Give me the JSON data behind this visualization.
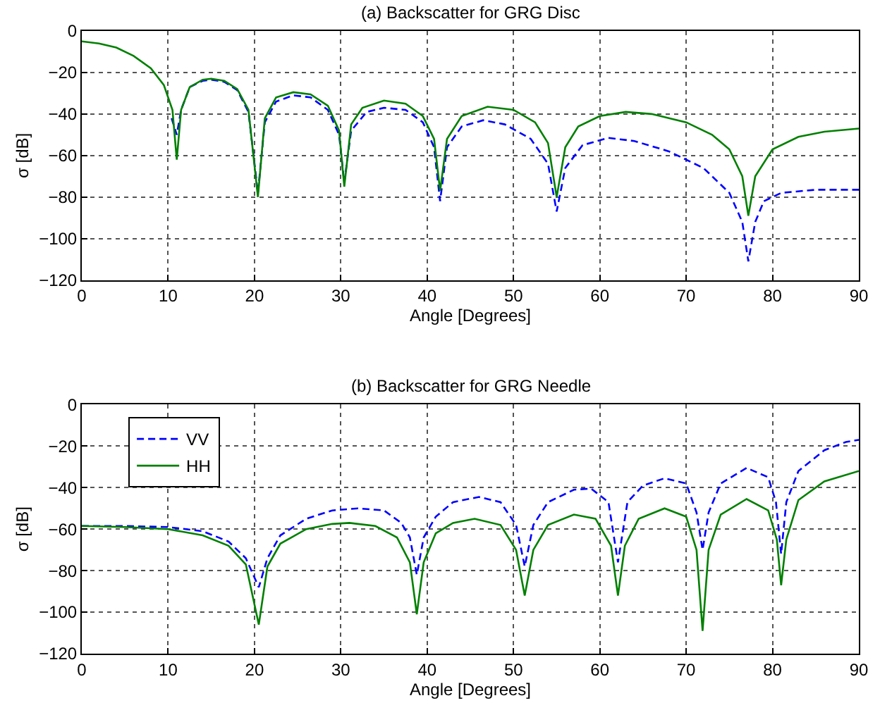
{
  "chart_data": [
    {
      "type": "line",
      "title": "(a) Backscatter for GRG Disc",
      "xlabel": "Angle [Degrees]",
      "ylabel": "σ [dB]",
      "xlim": [
        0,
        90
      ],
      "ylim": [
        -120,
        0
      ],
      "xticks": [
        0,
        10,
        20,
        30,
        40,
        50,
        60,
        70,
        80,
        90
      ],
      "yticks": [
        -120,
        -100,
        -80,
        -60,
        -40,
        -20,
        0
      ],
      "grid": true,
      "marker": "none",
      "series": [
        {
          "color": "#0000ff",
          "line_style": "dashed",
          "x": [
            10.4,
            11,
            11.5,
            12.5,
            14,
            15,
            16.5,
            18,
            19.3,
            20.4,
            21.2,
            22.5,
            24.5,
            26.5,
            28.5,
            29.8,
            30.4,
            31.2,
            33,
            35,
            37.5,
            39.5,
            40.8,
            41.5,
            42.3,
            44,
            46.5,
            49,
            52,
            54,
            55,
            56,
            58,
            61,
            64,
            68,
            72,
            75,
            76.5,
            77.2,
            78,
            79,
            81,
            85,
            90
          ],
          "values": [
            -42,
            -50,
            -38,
            -27,
            -24,
            -23.5,
            -24.5,
            -28.5,
            -39,
            -78,
            -44,
            -34,
            -31,
            -32,
            -38,
            -50,
            -73,
            -48,
            -39,
            -37,
            -38,
            -44,
            -56,
            -82,
            -56,
            -46,
            -43,
            -45,
            -52,
            -64,
            -87,
            -66,
            -55,
            -51.5,
            -53,
            -58,
            -66,
            -78,
            -92,
            -111,
            -92,
            -82,
            -78,
            -76.5,
            -76.5
          ]
        },
        {
          "color": "#008000",
          "line_style": "solid",
          "x": [
            0,
            2,
            4,
            6,
            8,
            9.5,
            10.5,
            11,
            11.5,
            12.5,
            14,
            15,
            16.5,
            18,
            19.3,
            20.4,
            21.2,
            22.5,
            24.5,
            26.5,
            28.5,
            29.8,
            30.4,
            31.2,
            32.5,
            35,
            37.5,
            39.5,
            40.8,
            41.5,
            42.3,
            44,
            47,
            50,
            52.5,
            54,
            55,
            56,
            57.5,
            60,
            63,
            66,
            70,
            73,
            75,
            76.5,
            77.2,
            78,
            80,
            83,
            86,
            90
          ],
          "values": [
            -5,
            -6,
            -8,
            -12,
            -18,
            -26,
            -38,
            -62,
            -38,
            -27,
            -23.5,
            -23,
            -24,
            -28,
            -38,
            -80,
            -42,
            -32,
            -29.5,
            -30.5,
            -36,
            -48,
            -75,
            -45,
            -37,
            -33.5,
            -35,
            -41,
            -52,
            -77,
            -52,
            -41,
            -36.5,
            -38,
            -44,
            -54,
            -80,
            -56,
            -46,
            -41,
            -39,
            -40,
            -44,
            -50,
            -57,
            -70,
            -89,
            -70,
            -57,
            -51,
            -48.5,
            -47
          ]
        }
      ]
    },
    {
      "type": "line",
      "title": "(b) Backscatter for GRG Needle",
      "xlabel": "Angle [Degrees]",
      "ylabel": "σ [dB]",
      "xlim": [
        0,
        90
      ],
      "ylim": [
        -120,
        0
      ],
      "xticks": [
        0,
        10,
        20,
        30,
        40,
        50,
        60,
        70,
        80,
        90
      ],
      "yticks": [
        -120,
        -100,
        -80,
        -60,
        -40,
        -20,
        0
      ],
      "grid": true,
      "marker": "none",
      "legend": "top left",
      "series": [
        {
          "name": "VV",
          "color": "#0000ff",
          "line_style": "dashed",
          "x": [
            0,
            5,
            10,
            14,
            17,
            19,
            20.5,
            21.5,
            23,
            26,
            29,
            32,
            35,
            37,
            38,
            38.8,
            39.6,
            41,
            43,
            46,
            48.5,
            50.3,
            51.3,
            52.3,
            54,
            57,
            59,
            61,
            62.1,
            63.2,
            65,
            67.5,
            70,
            71.2,
            71.9,
            72.6,
            74,
            77,
            79.5,
            80.4,
            81,
            81.6,
            83,
            86,
            88.5,
            90
          ],
          "values": [
            -58.5,
            -58.5,
            -59,
            -61,
            -66,
            -74,
            -88,
            -74,
            -63,
            -55,
            -51,
            -50,
            -51,
            -57,
            -64,
            -82,
            -64,
            -54,
            -47,
            -44.5,
            -47,
            -58,
            -78,
            -58,
            -47,
            -41,
            -40.5,
            -47,
            -76,
            -47,
            -39,
            -35.5,
            -38,
            -52,
            -70,
            -52,
            -38,
            -30.5,
            -35,
            -47,
            -72,
            -47,
            -32,
            -22,
            -18,
            -17
          ]
        },
        {
          "name": "HH",
          "color": "#008000",
          "line_style": "solid",
          "x": [
            0,
            5,
            10,
            14,
            17,
            19,
            20.5,
            21.5,
            23,
            26,
            29,
            31,
            34,
            36.5,
            38,
            38.8,
            39.6,
            41,
            43,
            45.5,
            48.5,
            50.3,
            51.3,
            52.3,
            54,
            57,
            59.5,
            61.3,
            62.1,
            62.9,
            64.5,
            67.5,
            70,
            71.2,
            71.9,
            72.6,
            74,
            77,
            79.5,
            80.5,
            81,
            81.6,
            83,
            86,
            90
          ],
          "values": [
            -58.5,
            -59,
            -60,
            -63,
            -68,
            -77,
            -106,
            -78,
            -67,
            -60,
            -57.5,
            -57,
            -58.5,
            -64,
            -76,
            -101,
            -76,
            -62,
            -57,
            -55,
            -58,
            -70,
            -92,
            -70,
            -58,
            -53,
            -55,
            -68,
            -92,
            -68,
            -55,
            -50,
            -54,
            -70,
            -109,
            -70,
            -53,
            -45.5,
            -51,
            -65,
            -87,
            -65,
            -46,
            -37,
            -32
          ]
        }
      ]
    }
  ]
}
